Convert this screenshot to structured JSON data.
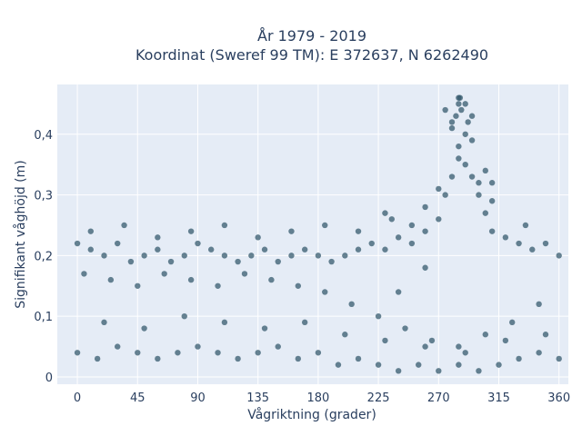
{
  "chart_data": {
    "type": "scatter",
    "title": "År 1979 - 2019",
    "subtitle": "Koordinat (Sweref 99 TM): E 372637, N 6262490",
    "xlabel": "Vågriktning (grader)",
    "ylabel": "Signifikant våghöjd (m)",
    "xlim": [
      -15,
      367
    ],
    "ylim": [
      -0.012,
      0.482
    ],
    "xticks": [
      0,
      45,
      90,
      135,
      180,
      225,
      270,
      315,
      360
    ],
    "xtick_labels": [
      "0",
      "45",
      "90",
      "135",
      "180",
      "225",
      "270",
      "315",
      "360"
    ],
    "yticks": [
      0,
      0.1,
      0.2,
      0.3,
      0.4
    ],
    "ytick_labels": [
      "0",
      "0,1",
      "0,2",
      "0,3",
      "0,4"
    ],
    "grid": true,
    "colors": {
      "points": "#2f5468",
      "plot_bg": "#e5ecf6",
      "text": "#2a3f5f"
    },
    "series": [
      {
        "x": [
          0,
          10,
          20,
          30,
          40,
          50,
          60,
          70,
          80,
          90,
          100,
          110,
          120,
          130,
          140,
          150,
          160,
          170,
          180,
          190,
          200,
          210,
          220,
          230,
          240,
          250,
          260,
          270,
          275,
          280,
          285,
          290,
          295,
          300,
          305,
          310,
          320,
          330,
          340,
          350,
          360,
          0,
          15,
          30,
          45,
          60,
          75,
          90,
          105,
          120,
          135,
          150,
          165,
          180,
          195,
          210,
          225,
          240,
          255,
          270,
          285,
          300,
          315,
          330,
          345,
          360,
          5,
          25,
          45,
          65,
          85,
          105,
          125,
          145,
          165,
          185,
          205,
          225,
          245,
          265,
          285,
          305,
          325,
          345,
          10,
          35,
          60,
          85,
          110,
          135,
          160,
          185,
          210,
          235,
          260,
          285,
          310,
          335,
          20,
          50,
          80,
          110,
          140,
          170,
          200,
          230,
          260,
          290,
          320,
          350,
          230,
          250,
          270,
          280,
          290,
          300,
          310,
          240,
          260,
          275,
          285,
          295,
          305,
          280,
          285,
          290,
          295,
          283,
          287,
          292,
          286
        ],
        "y": [
          0.22,
          0.21,
          0.2,
          0.22,
          0.19,
          0.2,
          0.21,
          0.19,
          0.2,
          0.22,
          0.21,
          0.2,
          0.19,
          0.2,
          0.21,
          0.19,
          0.2,
          0.21,
          0.2,
          0.19,
          0.2,
          0.21,
          0.22,
          0.21,
          0.23,
          0.22,
          0.24,
          0.26,
          0.3,
          0.33,
          0.36,
          0.35,
          0.33,
          0.3,
          0.27,
          0.24,
          0.23,
          0.22,
          0.21,
          0.22,
          0.2,
          0.04,
          0.03,
          0.05,
          0.04,
          0.03,
          0.04,
          0.05,
          0.04,
          0.03,
          0.04,
          0.05,
          0.03,
          0.04,
          0.02,
          0.03,
          0.02,
          0.01,
          0.02,
          0.01,
          0.02,
          0.01,
          0.02,
          0.03,
          0.04,
          0.03,
          0.17,
          0.16,
          0.15,
          0.17,
          0.16,
          0.15,
          0.17,
          0.16,
          0.15,
          0.14,
          0.12,
          0.1,
          0.08,
          0.06,
          0.05,
          0.07,
          0.09,
          0.12,
          0.24,
          0.25,
          0.23,
          0.24,
          0.25,
          0.23,
          0.24,
          0.25,
          0.24,
          0.26,
          0.28,
          0.38,
          0.32,
          0.25,
          0.09,
          0.08,
          0.1,
          0.09,
          0.08,
          0.09,
          0.07,
          0.06,
          0.05,
          0.04,
          0.06,
          0.07,
          0.27,
          0.25,
          0.31,
          0.41,
          0.4,
          0.32,
          0.29,
          0.14,
          0.18,
          0.44,
          0.45,
          0.43,
          0.34,
          0.42,
          0.46,
          0.45,
          0.39,
          0.43,
          0.44,
          0.42,
          0.46
        ]
      }
    ]
  }
}
